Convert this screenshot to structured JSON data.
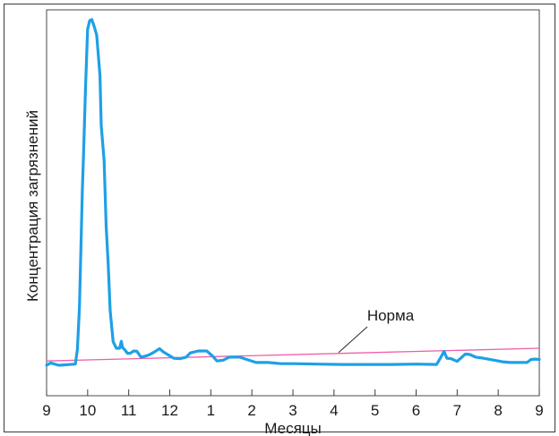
{
  "chart_data": {
    "type": "line",
    "title": "",
    "xlabel": "Месяцы",
    "ylabel": "Концентрация загрязнений",
    "x_tick_labels": [
      "9",
      "10",
      "11",
      "12",
      "1",
      "2",
      "3",
      "4",
      "5",
      "6",
      "7",
      "8",
      "9"
    ],
    "xlim": [
      0,
      12
    ],
    "ylim": [
      0,
      100
    ],
    "grid": false,
    "legend": "none",
    "series": [
      {
        "color": "#1ea0e6",
        "x": [
          0,
          0.1,
          0.3,
          0.7,
          0.75,
          0.8,
          0.87,
          0.9,
          0.95,
          1.0,
          1.05,
          1.1,
          1.15,
          1.22,
          1.3,
          1.33,
          1.4,
          1.45,
          1.5,
          1.55,
          1.62,
          1.7,
          1.78,
          1.82,
          1.85,
          1.92,
          1.97,
          2.04,
          2.12,
          2.2,
          2.3,
          2.42,
          2.5,
          2.62,
          2.75,
          2.85,
          3.1,
          3.25,
          3.4,
          3.5,
          3.7,
          3.9,
          4.05,
          4.15,
          4.3,
          4.45,
          4.7,
          4.9,
          5.1,
          5.4,
          5.7,
          6.0,
          6.6,
          7.2,
          7.8,
          8.4,
          9.0,
          9.5,
          9.6,
          9.68,
          9.75,
          9.85,
          10.0,
          10.2,
          10.3,
          10.45,
          10.6,
          10.9,
          11.1,
          11.3,
          11.5,
          11.7,
          11.8,
          11.9,
          12.0
        ],
        "y": [
          7.9,
          8.5,
          7.9,
          8.2,
          12.0,
          23.0,
          53.0,
          63.0,
          80.0,
          95.0,
          97.2,
          97.5,
          96.0,
          93.5,
          83.0,
          70.0,
          61.0,
          44.0,
          34.0,
          22.0,
          14.0,
          12.3,
          12.3,
          14.1,
          12.5,
          11.7,
          11.0,
          11.0,
          11.6,
          11.5,
          10.0,
          10.3,
          10.6,
          11.3,
          12.2,
          11.3,
          9.7,
          9.6,
          10.0,
          11.1,
          11.6,
          11.6,
          10.2,
          9.0,
          9.2,
          10.0,
          10.0,
          9.3,
          8.6,
          8.6,
          8.3,
          8.3,
          8.2,
          8.1,
          8.1,
          8.1,
          8.2,
          8.1,
          9.9,
          11.5,
          9.7,
          9.6,
          8.9,
          10.8,
          10.7,
          10.0,
          9.8,
          9.2,
          8.8,
          8.6,
          8.6,
          8.6,
          9.4,
          9.5,
          9.4
        ]
      }
    ],
    "reference_line": {
      "label": "Норма",
      "color": "#ee5fa8",
      "y_start": 9.0,
      "y_end": 12.3
    }
  }
}
